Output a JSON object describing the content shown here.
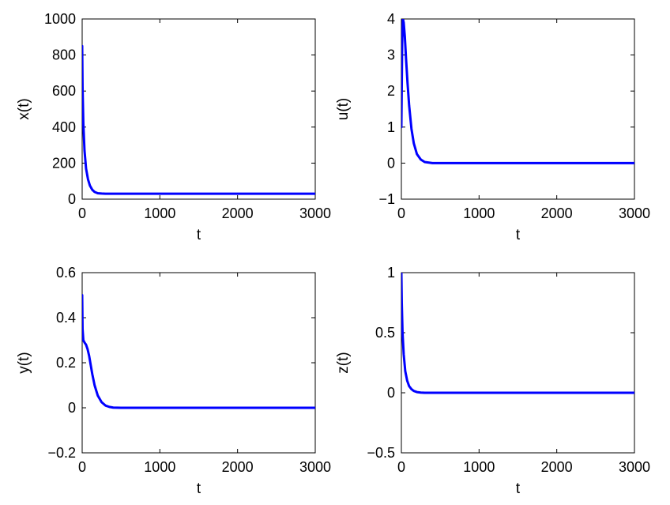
{
  "chart_data": [
    {
      "type": "line",
      "panel": "top-left",
      "xlabel": "t",
      "ylabel": "x(t)",
      "xlim": [
        0,
        3000
      ],
      "ylim": [
        0,
        1000
      ],
      "xticks": [
        0,
        1000,
        2000,
        3000
      ],
      "yticks": [
        0,
        200,
        400,
        600,
        800,
        1000
      ],
      "xtick_labels": [
        "0",
        "1000",
        "2000",
        "3000"
      ],
      "ytick_labels": [
        "0",
        "200",
        "400",
        "600",
        "800",
        "1000"
      ],
      "color": "#0000ff",
      "grid": false,
      "series": [
        {
          "x": [
            0,
            5,
            15,
            30,
            50,
            75,
            100,
            130,
            160,
            200,
            250,
            300,
            400,
            600,
            1000,
            2000,
            3000
          ],
          "y": [
            850,
            620,
            420,
            270,
            170,
            110,
            75,
            52,
            40,
            33,
            31,
            30,
            30,
            30,
            30,
            30,
            30
          ]
        }
      ]
    },
    {
      "type": "line",
      "panel": "top-right",
      "xlabel": "t",
      "ylabel": "u(t)",
      "xlim": [
        0,
        3000
      ],
      "ylim": [
        -1,
        4
      ],
      "xticks": [
        0,
        1000,
        2000,
        3000
      ],
      "yticks": [
        -1,
        0,
        1,
        2,
        3,
        4
      ],
      "xtick_labels": [
        "0",
        "1000",
        "2000",
        "3000"
      ],
      "ytick_labels": [
        "−1",
        "0",
        "1",
        "2",
        "3",
        "4"
      ],
      "color": "#0000ff",
      "grid": false,
      "series": [
        {
          "x": [
            0,
            10,
            20,
            30,
            45,
            60,
            80,
            100,
            130,
            160,
            200,
            250,
            300,
            400,
            500,
            1000,
            2000,
            3000
          ],
          "y": [
            1.0,
            3.3,
            4.0,
            3.9,
            3.5,
            2.9,
            2.2,
            1.6,
            0.95,
            0.55,
            0.25,
            0.1,
            0.03,
            0.0,
            0.0,
            0.0,
            0.0,
            0.0
          ]
        }
      ]
    },
    {
      "type": "line",
      "panel": "bottom-left",
      "xlabel": "t",
      "ylabel": "y(t)",
      "xlim": [
        0,
        3000
      ],
      "ylim": [
        -0.2,
        0.6
      ],
      "xticks": [
        0,
        1000,
        2000,
        3000
      ],
      "yticks": [
        -0.2,
        0,
        0.2,
        0.4,
        0.6
      ],
      "xtick_labels": [
        "0",
        "1000",
        "2000",
        "3000"
      ],
      "ytick_labels": [
        "−0.2",
        "0",
        "0.2",
        "0.4",
        "0.6"
      ],
      "color": "#0000ff",
      "grid": false,
      "series": [
        {
          "x": [
            0,
            5,
            15,
            30,
            50,
            70,
            90,
            110,
            130,
            160,
            200,
            250,
            300,
            350,
            400,
            500,
            1000,
            2000,
            3000
          ],
          "y": [
            0.5,
            0.35,
            0.3,
            0.29,
            0.28,
            0.26,
            0.23,
            0.19,
            0.15,
            0.1,
            0.055,
            0.025,
            0.01,
            0.004,
            0.001,
            0.0,
            0.0,
            0.0,
            0.0
          ]
        }
      ]
    },
    {
      "type": "line",
      "panel": "bottom-right",
      "xlabel": "t",
      "ylabel": "z(t)",
      "xlim": [
        0,
        3000
      ],
      "ylim": [
        -0.5,
        1
      ],
      "xticks": [
        0,
        1000,
        2000,
        3000
      ],
      "yticks": [
        -0.5,
        0,
        0.5,
        1
      ],
      "xtick_labels": [
        "0",
        "1000",
        "2000",
        "3000"
      ],
      "ytick_labels": [
        "−0.5",
        "0",
        "0.5",
        "1"
      ],
      "color": "#0000ff",
      "grid": false,
      "series": [
        {
          "x": [
            0,
            5,
            15,
            30,
            50,
            75,
            100,
            130,
            160,
            200,
            250,
            300,
            400,
            1000,
            2000,
            3000
          ],
          "y": [
            1.0,
            0.75,
            0.5,
            0.32,
            0.18,
            0.1,
            0.055,
            0.03,
            0.015,
            0.006,
            0.002,
            0.0,
            0.0,
            0.0,
            0.0,
            0.0
          ]
        }
      ]
    }
  ]
}
